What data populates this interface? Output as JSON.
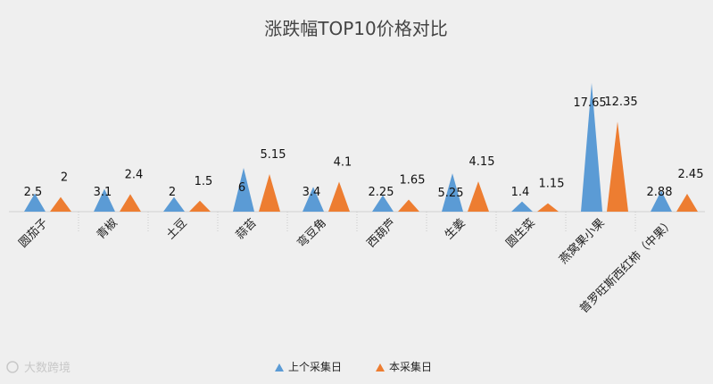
{
  "chart_data": {
    "type": "area",
    "title": "涨跌幅TOP10价格对比",
    "categories": [
      "圆茄子",
      "青椒",
      "土豆",
      "蒜苔",
      "弯豆角",
      "西葫芦",
      "生姜",
      "圆生菜",
      "燕窝果小果",
      "普罗旺斯西红柿（中果）"
    ],
    "series": [
      {
        "name": "上个采集日",
        "color": "#5b9bd5",
        "values": [
          2.5,
          3.1,
          2,
          6,
          3.4,
          2.25,
          5.25,
          1.4,
          17.65,
          2.88
        ]
      },
      {
        "name": "本采集日",
        "color": "#ed7d31",
        "values": [
          2,
          2.4,
          1.5,
          5.15,
          4.1,
          1.65,
          4.15,
          1.15,
          12.35,
          2.45
        ]
      }
    ],
    "data_labels": [
      [
        "2.5",
        "3.1",
        "2",
        "6",
        "3.4",
        "2.25",
        "5.25",
        "1.4",
        "17.65",
        "2.88"
      ],
      [
        "2",
        "2.4",
        "1.5",
        "5.15",
        "4.1",
        "1.65",
        "4.15",
        "1.15",
        "12.35",
        "2.45"
      ]
    ],
    "ylim": [
      0,
      18
    ],
    "grid": false,
    "legend_position": "bottom",
    "watermark": "大数跨境"
  }
}
